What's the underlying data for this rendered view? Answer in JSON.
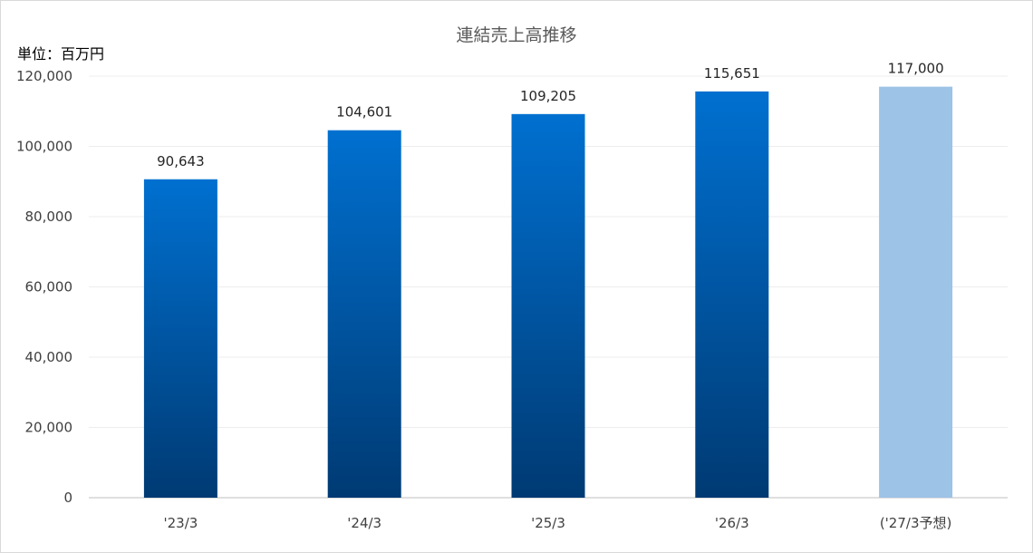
{
  "chart_data": {
    "type": "bar",
    "title": "連結売上高推移",
    "unit_label": "単位：百万円",
    "xlabel": "",
    "ylabel": "",
    "categories": [
      "'23/3",
      "'24/3",
      "'25/3",
      "'26/3",
      "('27/3予想)"
    ],
    "values": [
      90643,
      104601,
      109205,
      115651,
      117000
    ],
    "data_labels": [
      "90,643",
      "104,601",
      "109,205",
      "115,651",
      "117,000"
    ],
    "forecast": [
      false,
      false,
      false,
      false,
      true
    ],
    "ylim": [
      0,
      120000
    ],
    "yticks": [
      0,
      20000,
      40000,
      60000,
      80000,
      100000,
      120000
    ],
    "ytick_labels": [
      "0",
      "20,000",
      "40,000",
      "60,000",
      "80,000",
      "100,000",
      "120,000"
    ],
    "grid": true,
    "legend": "none",
    "colors": {
      "bar_top": "#0070d0",
      "bar_bottom": "#003a73",
      "forecast": "#9dc3e6",
      "grid": "#ededed",
      "axis": "#bfbfbf"
    }
  }
}
